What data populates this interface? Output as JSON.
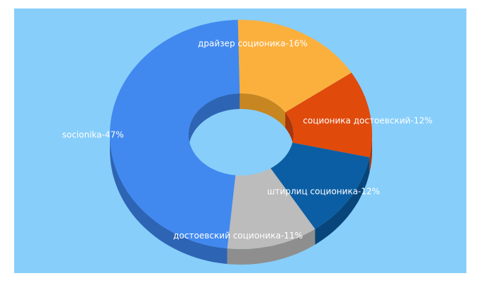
{
  "chart_data": {
    "type": "pie",
    "variant": "3d-donut",
    "background_color": "#87cefa",
    "slices": [
      {
        "label": "socionika-47%",
        "value": 47,
        "color": "#4189ef",
        "side_color": "#2e64b4"
      },
      {
        "label": "драйзер соционика-16%",
        "value": 16,
        "color": "#fbb03d",
        "side_color": "#c88620"
      },
      {
        "label": "соционика достоевский-12%",
        "value": 12,
        "color": "#e04a0b",
        "side_color": "#a8370a"
      },
      {
        "label": "штирлиц соционика-12%",
        "value": 12,
        "color": "#0b5ea3",
        "side_color": "#07457a"
      },
      {
        "label": "достоевский соционика-11%",
        "value": 11,
        "color": "#bcbcbc",
        "side_color": "#8e8e8e"
      }
    ]
  }
}
